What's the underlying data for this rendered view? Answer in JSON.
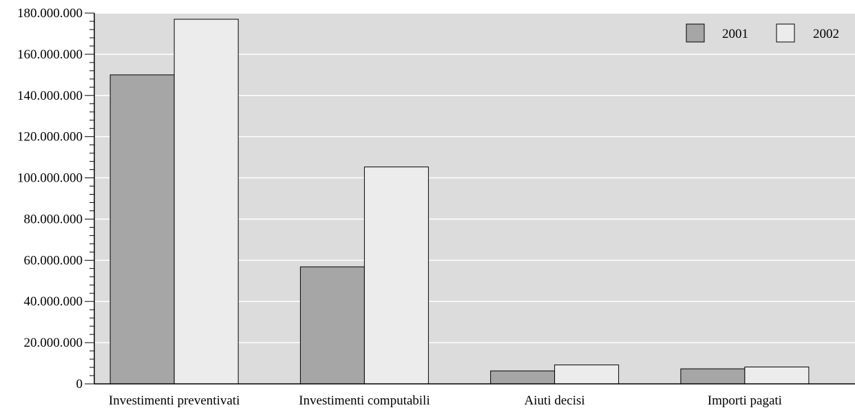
{
  "chart_data": {
    "type": "bar",
    "categories": [
      "Investimenti preventivati",
      "Investimenti computabili",
      "Aiuti decisi",
      "Importi pagati"
    ],
    "series": [
      {
        "name": "2001",
        "color": "#a6a6a6",
        "values": [
          150000000,
          56800000,
          6300000,
          7300000
        ]
      },
      {
        "name": "2002",
        "color": "#ececec",
        "values": [
          177000000,
          105300000,
          9200000,
          8200000
        ]
      }
    ],
    "yticks": [
      "0",
      "20.000.000",
      "40.000.000",
      "60.000.000",
      "80.000.000",
      "100.000.000",
      "120.000.000",
      "140.000.000",
      "160.000.000",
      "180.000.000"
    ],
    "ylim": [
      0,
      180000000
    ],
    "title": "",
    "xlabel": "",
    "ylabel": "",
    "grid": true,
    "legend_position": "top-right",
    "plot_background": "#dcdcdc",
    "grid_color": "#ffffff"
  }
}
